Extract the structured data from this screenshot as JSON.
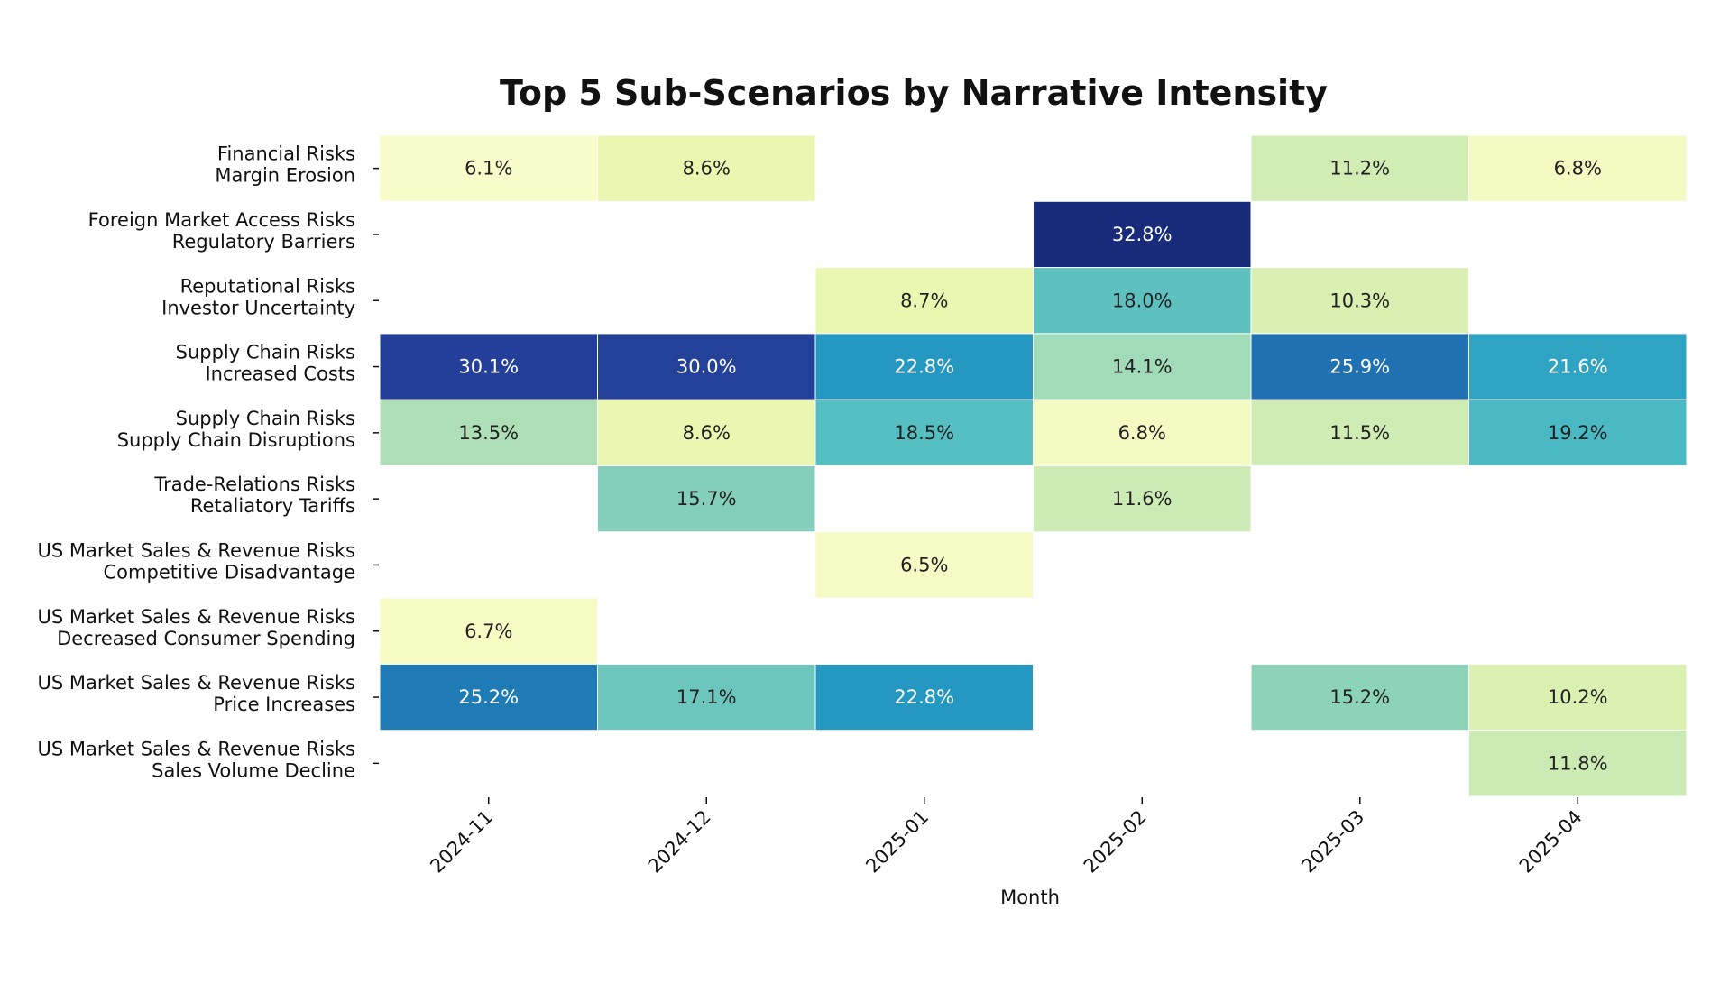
{
  "chart_data": {
    "type": "heatmap",
    "title": "Top 5 Sub-Scenarios by Narrative Intensity",
    "xlabel": "Month",
    "ylabel": "",
    "x": [
      "2024-11",
      "2024-12",
      "2025-01",
      "2025-02",
      "2025-03",
      "2025-04"
    ],
    "y": [
      [
        "Financial Risks",
        "Margin Erosion"
      ],
      [
        "Foreign Market Access Risks",
        "Regulatory Barriers"
      ],
      [
        "Reputational Risks",
        "Investor Uncertainty"
      ],
      [
        "Supply Chain Risks",
        "Increased Costs"
      ],
      [
        "Supply Chain Risks",
        "Supply Chain Disruptions"
      ],
      [
        "Trade-Relations Risks",
        "Retaliatory Tariffs"
      ],
      [
        "US Market Sales & Revenue Risks",
        "Competitive Disadvantage"
      ],
      [
        "US Market Sales & Revenue Risks",
        "Decreased Consumer Spending"
      ],
      [
        "US Market Sales & Revenue Risks",
        "Price Increases"
      ],
      [
        "US Market Sales & Revenue Risks",
        "Sales Volume Decline"
      ]
    ],
    "values": [
      [
        6.1,
        8.6,
        null,
        null,
        11.2,
        6.8
      ],
      [
        null,
        null,
        null,
        32.8,
        null,
        null
      ],
      [
        null,
        null,
        8.7,
        18.0,
        10.3,
        null
      ],
      [
        30.1,
        30.0,
        22.8,
        14.1,
        25.9,
        21.6
      ],
      [
        13.5,
        8.6,
        18.5,
        6.8,
        11.5,
        19.2
      ],
      [
        null,
        15.7,
        null,
        11.6,
        null,
        null
      ],
      [
        null,
        null,
        6.5,
        null,
        null,
        null
      ],
      [
        6.7,
        null,
        null,
        null,
        null,
        null
      ],
      [
        25.2,
        17.1,
        22.8,
        null,
        15.2,
        10.2
      ],
      [
        null,
        null,
        null,
        null,
        null,
        11.8
      ]
    ],
    "value_format": "%",
    "colormap": "YlGnBu",
    "grid": false,
    "legend": "none"
  }
}
